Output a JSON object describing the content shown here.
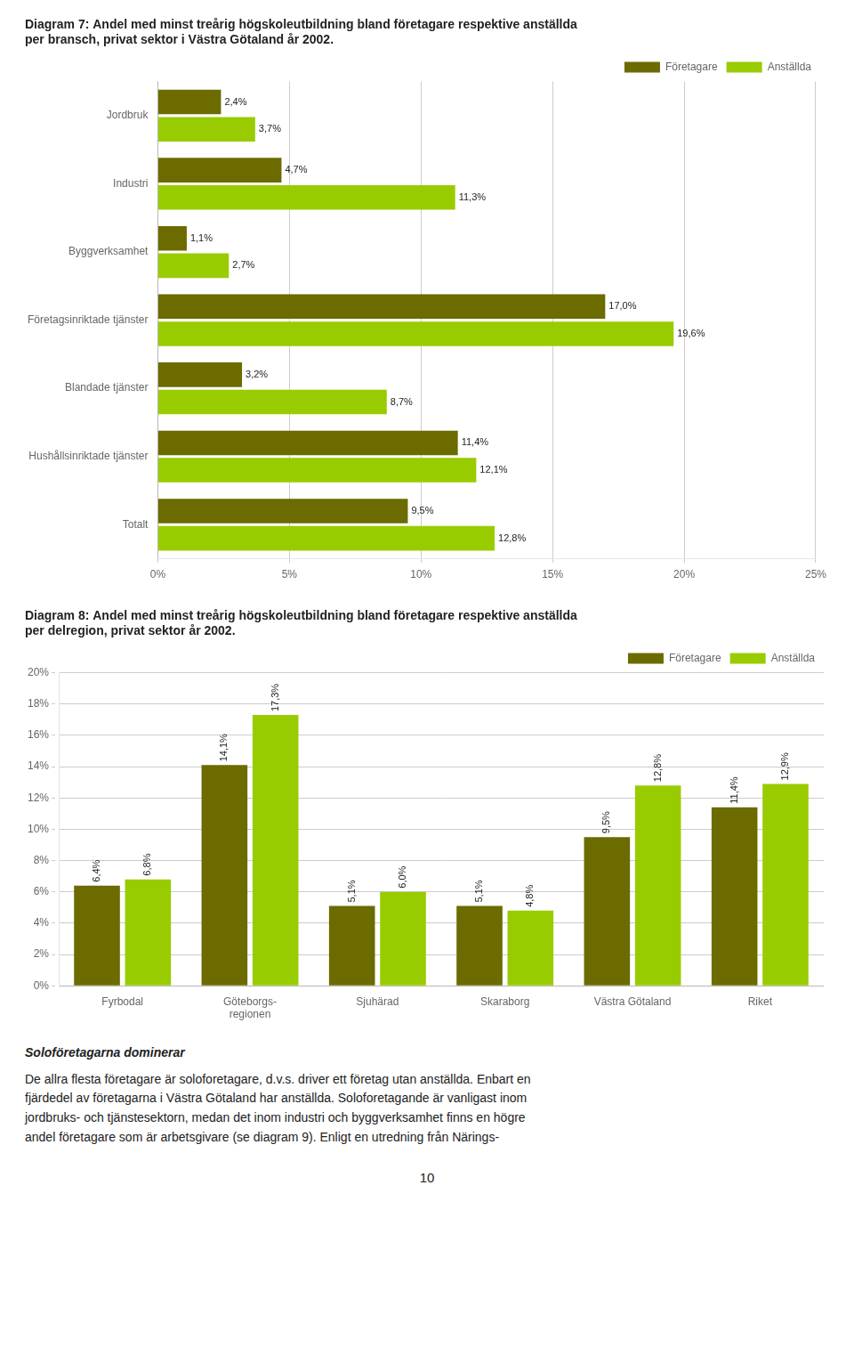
{
  "chart_data": [
    {
      "type": "bar",
      "title": "Diagram 7: Andel med minst treårig högskoleutbildning bland företagare respektive anställda\nper bransch, privat sektor i Västra Götaland år 2002.",
      "orientation": "horizontal",
      "categories": [
        "Jordbruk",
        "Industri",
        "Byggverksamhet",
        "Företagsinriktade tjänster",
        "Blandade tjänster",
        "Hushållsinriktade tjänster",
        "Totalt"
      ],
      "series": [
        {
          "name": "Företagare",
          "color": "#6b6b00",
          "values": [
            2.4,
            4.7,
            1.1,
            17.0,
            3.2,
            11.4,
            9.5
          ],
          "value_labels": [
            "2,4%",
            "4,7%",
            "1,1%",
            "17,0%",
            "3,2%",
            "11,4%",
            "9,5%"
          ]
        },
        {
          "name": "Anställda",
          "color": "#99cc00",
          "values": [
            3.7,
            11.3,
            2.7,
            19.6,
            8.7,
            12.1,
            12.8
          ],
          "value_labels": [
            "3,7%",
            "11,3%",
            "2,7%",
            "19,6%",
            "8,7%",
            "12,1%",
            "12,8%"
          ]
        }
      ],
      "xlim": [
        0,
        25
      ],
      "xticks": [
        {
          "value": 0,
          "label": "0%"
        },
        {
          "value": 5,
          "label": "5%"
        },
        {
          "value": 10,
          "label": "10%"
        },
        {
          "value": 15,
          "label": "15%"
        },
        {
          "value": 20,
          "label": "20%"
        },
        {
          "value": 25,
          "label": "25%"
        }
      ],
      "grid": true,
      "legend": "upper right",
      "data_labels": true
    },
    {
      "type": "bar",
      "title": "Diagram 8: Andel med minst treårig högskoleutbildning bland företagare respektive anställda\nper delregion, privat sektor år 2002.",
      "categories": [
        "Fyrbodal",
        "Göteborgs-\nregionen",
        "Sjuhärad",
        "Skaraborg",
        "Västra Götaland",
        "Riket"
      ],
      "series": [
        {
          "name": "Företagare",
          "color": "#6b6b00",
          "values": [
            6.4,
            14.1,
            5.1,
            5.1,
            9.5,
            11.4
          ],
          "value_labels": [
            "6,4%",
            "14,1%",
            "5,1%",
            "5,1%",
            "9,5%",
            "11,4%"
          ]
        },
        {
          "name": "Anställda",
          "color": "#99cc00",
          "values": [
            6.8,
            17.3,
            6.0,
            4.8,
            12.8,
            12.9
          ],
          "value_labels": [
            "6,8%",
            "17,3%",
            "6,0%",
            "4,8%",
            "12,8%",
            "12,9%"
          ]
        }
      ],
      "ylim": [
        0,
        20
      ],
      "yticks": [
        {
          "value": 0,
          "label": "0%"
        },
        {
          "value": 2,
          "label": "2%"
        },
        {
          "value": 4,
          "label": "4%"
        },
        {
          "value": 6,
          "label": "6%"
        },
        {
          "value": 8,
          "label": "8%"
        },
        {
          "value": 10,
          "label": "10%"
        },
        {
          "value": 12,
          "label": "12%"
        },
        {
          "value": 14,
          "label": "14%"
        },
        {
          "value": 16,
          "label": "16%"
        },
        {
          "value": 18,
          "label": "18%"
        },
        {
          "value": 20,
          "label": "20%"
        }
      ],
      "grid": true,
      "legend": "upper right",
      "data_labels": true
    }
  ],
  "annotations": {
    "heading": "Soloföretagarna dominerar",
    "lines": [
      "De allra flesta företagare är soloforetagare, d.v.s. driver ett företag utan anställda. Enbart en",
      "fjärdedel av företagarna i Västra Götaland har anställda. Soloforetagande är vanligast inom",
      "jordbruks- och tjänstesektorn, medan det inom industri och byggverksamhet finns en högre",
      "andel företagare som är arbetsgivare (se diagram 9). Enligt en utredning från Närings-"
    ],
    "page_number": "10"
  }
}
